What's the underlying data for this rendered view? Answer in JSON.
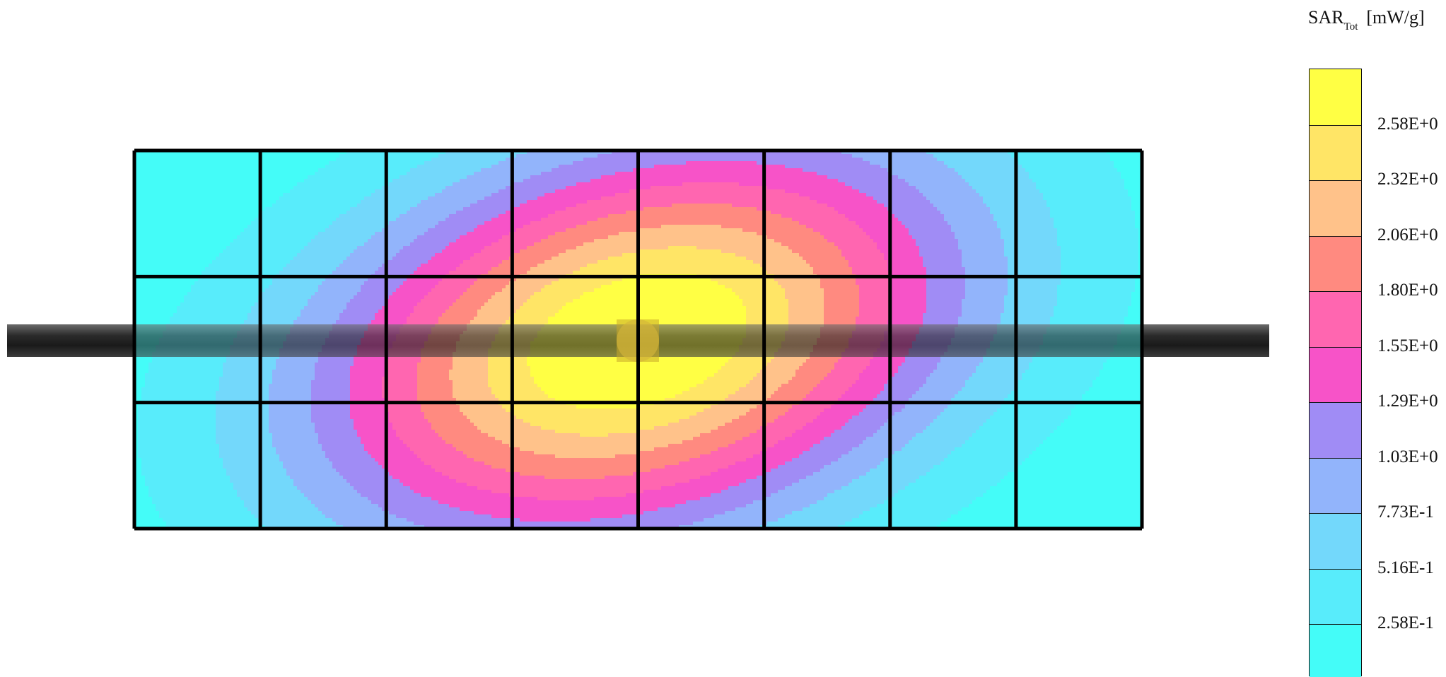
{
  "chart_data": {
    "type": "heatmap",
    "legend": {
      "title_main": "SAR",
      "title_sub": "Tot",
      "unit": "[mW/g]",
      "levels": [
        "2.58E+0",
        "2.32E+0",
        "2.06E+0",
        "1.80E+0",
        "1.55E+0",
        "1.29E+0",
        "1.03E+0",
        "7.73E-1",
        "5.16E-1",
        "2.58E-1"
      ],
      "colors": [
        "#ffff44",
        "#ffe566",
        "#ffc28a",
        "#ff8a80",
        "#ff66b0",
        "#f753c8",
        "#a08cf5",
        "#92b4fb",
        "#73d8fb",
        "#58ecfb",
        "#44fcf8"
      ]
    },
    "peak_value_label": "2.58E+0",
    "grid": {
      "columns": 8,
      "rows": 3
    }
  }
}
